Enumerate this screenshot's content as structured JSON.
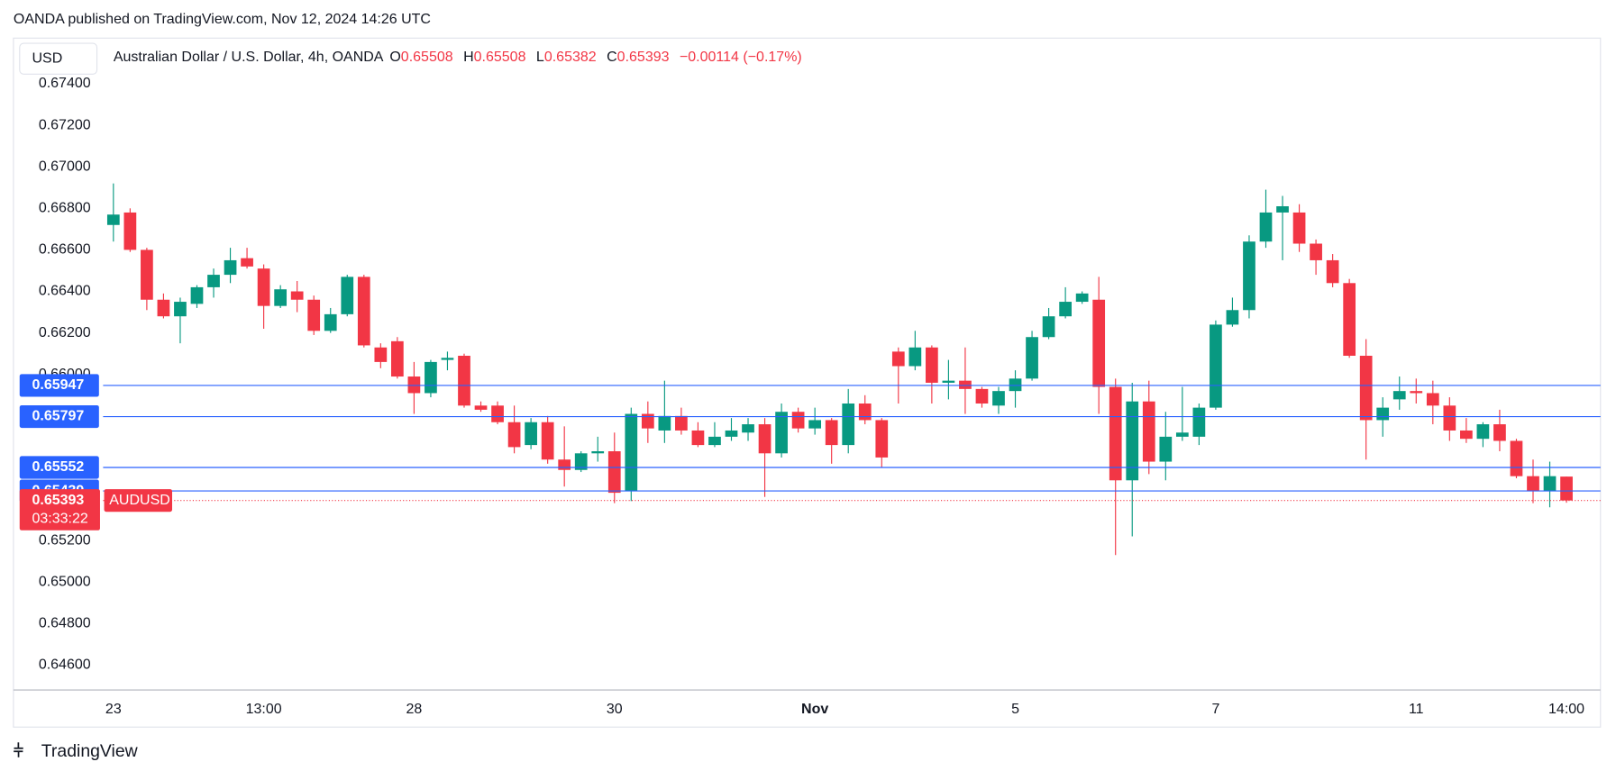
{
  "header": {
    "publisher": "OANDA published on TradingView.com, Nov 12, 2024 14:26 UTC",
    "footer": "TradingView"
  },
  "chart_data": {
    "type": "candlestick",
    "title": "Australian Dollar / U.S. Dollar, 4h, OANDA",
    "currency": "USD",
    "ohlc_labels": [
      "O",
      "H",
      "L",
      "C"
    ],
    "change": "−0.00114 (−0.17%)",
    "symbol": "AUDUSD",
    "countdown": "03:33:22",
    "up_color": "#089981",
    "down_color": "#f23645",
    "line_color": "#2962ff",
    "categories": [
      "23",
      null,
      null,
      null,
      null,
      null,
      null,
      null,
      null,
      "13:00",
      null,
      null,
      null,
      null,
      null,
      null,
      null,
      null,
      "28",
      null,
      null,
      null,
      null,
      null,
      null,
      null,
      null,
      null,
      null,
      null,
      "30",
      null,
      null,
      null,
      null,
      null,
      null,
      null,
      null,
      null,
      null,
      null,
      "Nov",
      null,
      null,
      null,
      null,
      null,
      null,
      null,
      null,
      null,
      null,
      null,
      "5",
      null,
      null,
      null,
      null,
      null,
      null,
      null,
      null,
      null,
      null,
      null,
      "7",
      null,
      null,
      null,
      null,
      null,
      null,
      null,
      null,
      null,
      null,
      null,
      "11",
      null,
      null,
      null,
      null,
      null,
      null,
      null,
      null,
      "14:00"
    ],
    "open": [
      0.6672,
      0.6678,
      0.666,
      0.6636,
      0.6628,
      0.6634,
      0.6642,
      0.6648,
      0.6656,
      0.6651,
      0.6633,
      0.664,
      0.6636,
      0.6621,
      0.6629,
      0.6647,
      0.6613,
      0.6616,
      0.6599,
      0.6591,
      0.6607,
      0.6609,
      0.6585,
      0.6585,
      0.6577,
      0.6566,
      0.6577,
      0.6559,
      0.6554,
      0.6562,
      0.6563,
      0.6544,
      0.6581,
      0.6573,
      0.658,
      0.6573,
      0.6566,
      0.657,
      0.6572,
      0.6576,
      0.6562,
      0.6582,
      0.6574,
      0.6578,
      0.6566,
      0.6586,
      0.6578,
      0.6611,
      0.6604,
      0.6613,
      0.6596,
      0.6597,
      0.6593,
      0.6585,
      0.6592,
      0.6598,
      0.6618,
      0.6628,
      0.6635,
      0.6636,
      0.6594,
      0.6549,
      0.6587,
      0.6558,
      0.657,
      0.657,
      0.6584,
      0.6624,
      0.6631,
      0.6664,
      0.6678,
      0.6678,
      0.6663,
      0.6655,
      0.6644,
      0.6609,
      0.6578,
      0.6588,
      0.6592,
      0.6591,
      0.6585,
      0.6573,
      0.6569,
      0.6576,
      0.6568,
      0.6551,
      0.6544,
      0.65508
    ],
    "high": [
      0.6692,
      0.668,
      0.6661,
      0.6639,
      0.6637,
      0.6643,
      0.6651,
      0.6661,
      0.6661,
      0.6653,
      0.6643,
      0.6645,
      0.6638,
      0.6632,
      0.6648,
      0.6648,
      0.6615,
      0.6618,
      0.6606,
      0.6607,
      0.6611,
      0.661,
      0.6587,
      0.6587,
      0.6585,
      0.6579,
      0.658,
      0.6575,
      0.6563,
      0.657,
      0.6572,
      0.6584,
      0.6587,
      0.6597,
      0.6584,
      0.6577,
      0.6577,
      0.6579,
      0.6579,
      0.6579,
      0.6586,
      0.6584,
      0.6584,
      0.6579,
      0.6593,
      0.659,
      0.6579,
      0.6613,
      0.6621,
      0.6614,
      0.6607,
      0.6613,
      0.6594,
      0.6594,
      0.6602,
      0.6621,
      0.6632,
      0.6642,
      0.664,
      0.6647,
      0.6598,
      0.6596,
      0.6597,
      0.6582,
      0.6594,
      0.6586,
      0.6626,
      0.6637,
      0.6667,
      0.6689,
      0.6686,
      0.6682,
      0.6665,
      0.6658,
      0.6646,
      0.6617,
      0.6589,
      0.6599,
      0.6598,
      0.6597,
      0.6589,
      0.6579,
      0.6577,
      0.6583,
      0.6569,
      0.6559,
      0.6558,
      0.65508
    ],
    "low": [
      0.6664,
      0.6659,
      0.6631,
      0.6627,
      0.6615,
      0.6632,
      0.6637,
      0.6644,
      0.6651,
      0.6622,
      0.6632,
      0.663,
      0.6619,
      0.662,
      0.6628,
      0.6613,
      0.6603,
      0.6598,
      0.6581,
      0.6589,
      0.6602,
      0.6584,
      0.6582,
      0.6576,
      0.6562,
      0.6564,
      0.6557,
      0.6546,
      0.6553,
      0.6558,
      0.6538,
      0.6539,
      0.6567,
      0.6567,
      0.6571,
      0.6565,
      0.6565,
      0.6568,
      0.6568,
      0.6541,
      0.656,
      0.6572,
      0.6571,
      0.6557,
      0.6562,
      0.6576,
      0.6555,
      0.6586,
      0.6602,
      0.6586,
      0.6588,
      0.6581,
      0.6584,
      0.6581,
      0.6584,
      0.6597,
      0.6617,
      0.6627,
      0.6634,
      0.6581,
      0.6513,
      0.6522,
      0.6552,
      0.6549,
      0.6568,
      0.6566,
      0.6583,
      0.6623,
      0.6627,
      0.6661,
      0.6655,
      0.6659,
      0.6648,
      0.6642,
      0.6608,
      0.6559,
      0.657,
      0.6583,
      0.6586,
      0.6576,
      0.6568,
      0.6567,
      0.6565,
      0.6563,
      0.655,
      0.6538,
      0.6536,
      0.65382
    ],
    "close": [
      0.6677,
      0.666,
      0.6636,
      0.6628,
      0.6635,
      0.6642,
      0.6648,
      0.6655,
      0.6652,
      0.6633,
      0.6641,
      0.6636,
      0.6621,
      0.6629,
      0.6647,
      0.6614,
      0.6606,
      0.6599,
      0.6591,
      0.6606,
      0.6608,
      0.6585,
      0.6583,
      0.6577,
      0.6565,
      0.6577,
      0.6559,
      0.6554,
      0.6562,
      0.6563,
      0.6543,
      0.6581,
      0.6574,
      0.658,
      0.6573,
      0.6566,
      0.657,
      0.6573,
      0.6576,
      0.6562,
      0.6582,
      0.6574,
      0.6578,
      0.6566,
      0.6586,
      0.6578,
      0.656,
      0.6604,
      0.6613,
      0.6596,
      0.6597,
      0.6593,
      0.6586,
      0.6592,
      0.6598,
      0.6618,
      0.6628,
      0.6635,
      0.6639,
      0.6594,
      0.6549,
      0.6587,
      0.6558,
      0.657,
      0.6572,
      0.6584,
      0.6624,
      0.6631,
      0.6664,
      0.6678,
      0.6681,
      0.6663,
      0.6655,
      0.6644,
      0.6609,
      0.6578,
      0.6584,
      0.6592,
      0.6591,
      0.6585,
      0.6573,
      0.6569,
      0.6576,
      0.6568,
      0.6551,
      0.6544,
      0.6551,
      0.65393
    ],
    "price_lines": [
      0.65947,
      0.65797,
      0.65552,
      0.65439
    ],
    "ylim": [
      0.6448,
      0.6762
    ],
    "yticks": [
      {
        "value": 0.674,
        "label": "0.67400"
      },
      {
        "value": 0.672,
        "label": "0.67200"
      },
      {
        "value": 0.67,
        "label": "0.67000"
      },
      {
        "value": 0.668,
        "label": "0.66800"
      },
      {
        "value": 0.666,
        "label": "0.66600"
      },
      {
        "value": 0.664,
        "label": "0.66400"
      },
      {
        "value": 0.662,
        "label": "0.66200"
      },
      {
        "value": 0.66,
        "label": "0.66000"
      },
      {
        "value": 0.652,
        "label": "0.65200"
      },
      {
        "value": 0.65,
        "label": "0.65000"
      },
      {
        "value": 0.648,
        "label": "0.64800"
      },
      {
        "value": 0.646,
        "label": "0.64600"
      }
    ],
    "grid": false
  }
}
